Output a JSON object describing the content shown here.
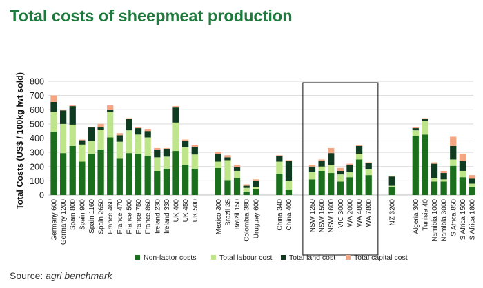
{
  "title": "Total costs of sheepmeat production",
  "source": {
    "prefix": "Source: ",
    "brand": "agri benchmark"
  },
  "colors": {
    "Non-factor costs": "#1b6e1b",
    "Total labour cost": "#bfe58a",
    "Total land cost": "#0f3b21",
    "Total capital cost": "#f4a582",
    "gridline": "#d9d9d9",
    "box": "#333333",
    "title": "#1e7a3c"
  },
  "chart_data": {
    "type": "bar",
    "stacked": true,
    "ylabel": "Total Costs (US$ / 100kg lwt sold)",
    "ylim": [
      0,
      800
    ],
    "yticks": [
      0,
      100,
      200,
      300,
      400,
      500,
      600,
      700,
      800
    ],
    "grid": true,
    "legend_position": "bottom",
    "highlight_box": {
      "from": "NSW 1250",
      "to": "WA 7800"
    },
    "categories": [
      "Germany 600",
      "Germany 1200",
      "Spain 800",
      "Spain 900",
      "Spain 1160",
      "Spain 2650",
      "France 460",
      "France 470",
      "France 500",
      "France 750",
      "France 860",
      "Ireland 230",
      "Ireland 330",
      "UK 400",
      "UK 450",
      "UK 500",
      "Mexico 300",
      "Brazil 35",
      "Brazil 150",
      "Colombia 380",
      "Uruguay 600",
      "China 340",
      "China 400",
      "NSW 1250",
      "NSW 1500",
      "NSW 1600",
      "VIC 3000",
      "WA 2000",
      "WA 4800",
      "WA 7800",
      "NZ 3200",
      "Algeria 300",
      "Tunisia 40",
      "Namibia 1000",
      "Namibia 3000",
      "S Africa 850",
      "S Africa 1500",
      "S Africa 1800"
    ],
    "group_sizes": [
      16,
      5,
      2,
      7,
      1,
      7
    ],
    "series": [
      {
        "name": "Non-factor costs",
        "values": [
          445,
          295,
          345,
          235,
          290,
          320,
          405,
          255,
          295,
          290,
          275,
          170,
          185,
          310,
          210,
          185,
          190,
          105,
          120,
          25,
          40,
          150,
          35,
          110,
          170,
          155,
          95,
          125,
          250,
          140,
          55,
          415,
          425,
          95,
          95,
          205,
          125,
          55
        ]
      },
      {
        "name": "Total labour cost",
        "values": [
          140,
          205,
          150,
          120,
          90,
          140,
          180,
          120,
          160,
          135,
          130,
          95,
          85,
          200,
          125,
          100,
          45,
          140,
          50,
          25,
          15,
          85,
          65,
          50,
          30,
          55,
          50,
          35,
          40,
          40,
          10,
          40,
          95,
          25,
          15,
          45,
          45,
          25
        ]
      },
      {
        "name": "Total land cost",
        "values": [
          70,
          95,
          130,
          30,
          95,
          15,
          15,
          45,
          80,
          45,
          45,
          55,
          55,
          105,
          45,
          55,
          55,
          20,
          25,
          15,
          45,
          40,
          140,
          40,
          40,
          85,
          25,
          50,
          55,
          45,
          65,
          15,
          15,
          100,
          45,
          95,
          70,
          35
        ]
      },
      {
        "name": "Total capital cost",
        "values": [
          45,
          5,
          5,
          5,
          5,
          25,
          30,
          15,
          5,
          10,
          15,
          10,
          5,
          10,
          10,
          10,
          15,
          15,
          15,
          10,
          10,
          5,
          5,
          10,
          10,
          35,
          20,
          10,
          5,
          5,
          5,
          10,
          5,
          10,
          15,
          65,
          50,
          25
        ]
      }
    ]
  }
}
